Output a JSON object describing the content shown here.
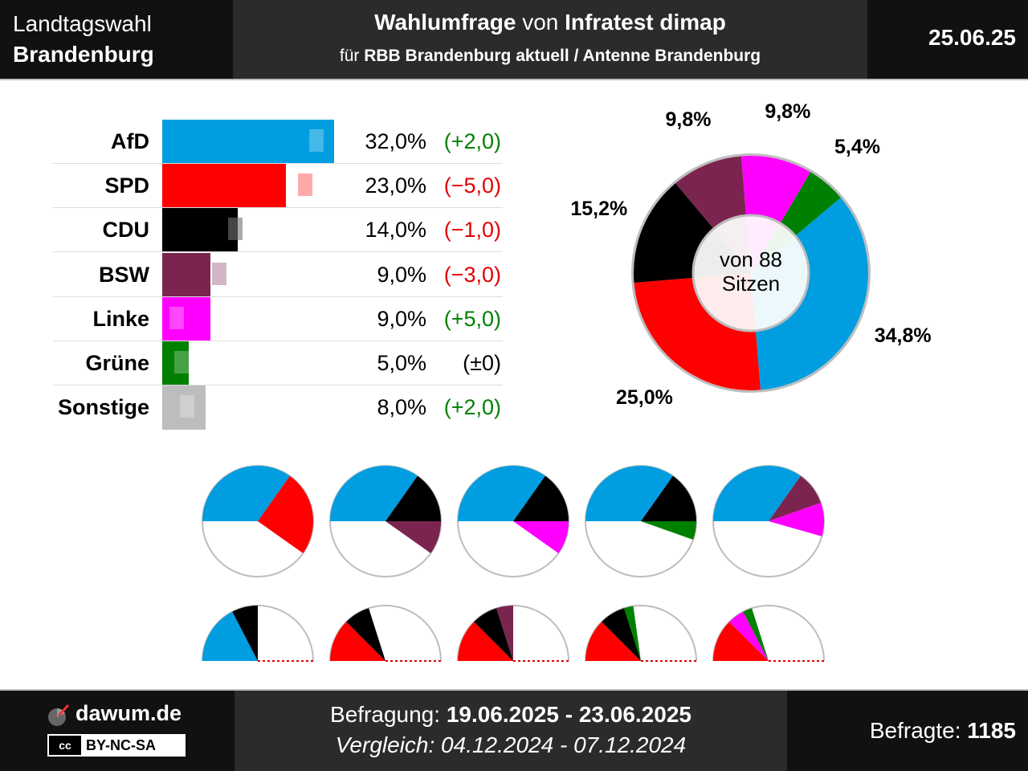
{
  "header": {
    "election_line1": "Landtagswahl",
    "election_line2": "Brandenburg",
    "title_bold1": "Wahlumfrage",
    "title_mid": " von ",
    "title_bold2": "Infratest dimap",
    "subtitle_pre": "für ",
    "subtitle_bold": "RBB Brandenburg aktuell / Antenne Brandenburg",
    "date": "25.06.25"
  },
  "chart_data": [
    {
      "type": "bar",
      "orientation": "horizontal",
      "categories": [
        "AfD",
        "SPD",
        "CDU",
        "BSW",
        "Linke",
        "Grüne",
        "Sonstige"
      ],
      "series": [
        {
          "values": [
            32.0,
            23.0,
            14.0,
            9.0,
            9.0,
            5.0,
            8.0
          ]
        },
        {
          "values": [
            30.0,
            28.0,
            15.0,
            12.0,
            4.0,
            5.0,
            6.0
          ]
        }
      ],
      "value_labels": [
        "32,0%",
        "23,0%",
        "14,0%",
        "9,0%",
        "9,0%",
        "5,0%",
        "8,0%"
      ],
      "diff_labels": [
        "(+2,0)",
        "(−5,0)",
        "(−1,0)",
        "(−3,0)",
        "(+5,0)",
        "(±0)",
        "(+2,0)"
      ],
      "diff_values": [
        2.0,
        -5.0,
        -1.0,
        -3.0,
        5.0,
        0.0,
        2.0
      ],
      "colors": [
        "#009de0",
        "#ff0000",
        "#000000",
        "#7b2450",
        "#ff00ff",
        "#008000",
        "#bdbdbd"
      ]
    },
    {
      "type": "pie",
      "variant": "donut",
      "center_label_line1": "von 88",
      "center_label_line2": "Sitzen",
      "categories": [
        "AfD",
        "SPD",
        "CDU",
        "BSW",
        "Linke",
        "Grüne"
      ],
      "values": [
        34.8,
        25.0,
        15.2,
        9.8,
        9.8,
        5.4
      ],
      "labels": [
        "34,8%",
        "25,0%",
        "15,2%",
        "9,8%",
        "9,8%",
        "5,4%"
      ],
      "colors": [
        "#009de0",
        "#ff0000",
        "#000000",
        "#7b2450",
        "#ff00ff",
        "#008000"
      ]
    },
    {
      "type": "pie",
      "variant": "coalition-circles",
      "coalitions": [
        [
          "AfD",
          "SPD"
        ],
        [
          "AfD",
          "CDU",
          "BSW"
        ],
        [
          "AfD",
          "CDU",
          "Linke"
        ],
        [
          "AfD",
          "CDU",
          "Grüne"
        ],
        [
          "AfD",
          "BSW",
          "Linke"
        ]
      ]
    },
    {
      "type": "pie",
      "variant": "coalition-semicircles",
      "coalitions": [
        [
          "AfD",
          "CDU"
        ],
        [
          "SPD",
          "CDU"
        ],
        [
          "SPD",
          "CDU",
          "BSW"
        ],
        [
          "SPD",
          "CDU",
          "Grüne"
        ],
        [
          "SPD",
          "Linke",
          "Grüne"
        ]
      ]
    }
  ],
  "footer": {
    "site": "dawum.de",
    "license": "BY-NC-SA",
    "license_badge": "cc",
    "survey_label": "Befragung: ",
    "survey_dates": "19.06.2025 - 23.06.2025",
    "compare_label": "Vergleich: 04.12.2024 - 07.12.2024",
    "respondents_label": "Befragte: ",
    "respondents": "1185"
  },
  "icons": {
    "logo": "dawum-logo-icon",
    "license": "cc-license-icon"
  }
}
